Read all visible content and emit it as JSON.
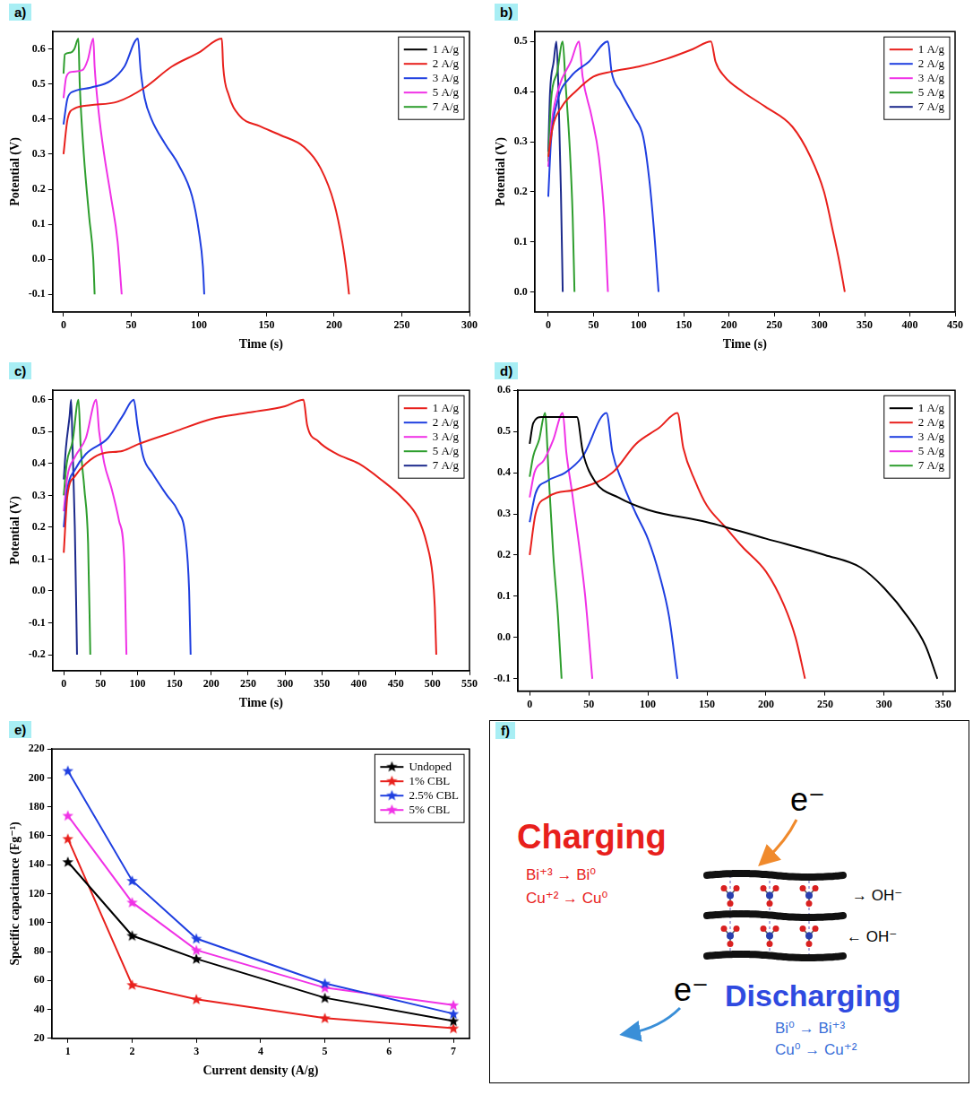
{
  "chart_data": [
    {
      "type": "line",
      "panel": "a)",
      "x_label": "Time (s)",
      "y_label": "Potential (V)",
      "xlim": [
        -8,
        300
      ],
      "xticks": [
        0,
        50,
        100,
        150,
        200,
        250,
        300
      ],
      "ylim": [
        -0.15,
        0.65
      ],
      "yticks": [
        -0.1,
        {
          "value": 0,
          "label": "0.0"
        },
        0.1,
        0.2,
        0.3,
        0.4,
        0.5,
        0.6
      ],
      "grid": false,
      "legend": "upper right",
      "series": [
        {
          "name": "1 A/g",
          "color": "#000000",
          "x": [],
          "values": []
        },
        {
          "name": "2 A/g",
          "color": "#e8201c",
          "x": [
            0,
            3,
            8,
            20,
            40,
            60,
            80,
            100,
            117,
            118,
            122,
            130,
            145,
            160,
            178,
            190,
            200,
            206,
            209,
            211
          ],
          "values": [
            0.3,
            0.4,
            0.43,
            0.44,
            0.45,
            0.49,
            0.55,
            0.59,
            0.63,
            0.55,
            0.47,
            0.41,
            0.38,
            0.355,
            0.32,
            0.26,
            0.16,
            0.05,
            -0.03,
            -0.1
          ]
        },
        {
          "name": "3 A/g",
          "color": "#1f3fe0",
          "x": [
            0,
            3,
            8,
            20,
            35,
            45,
            55,
            57,
            60,
            65,
            75,
            85,
            95,
            100,
            103,
            104
          ],
          "values": [
            0.385,
            0.46,
            0.48,
            0.49,
            0.51,
            0.55,
            0.63,
            0.54,
            0.46,
            0.4,
            0.33,
            0.27,
            0.18,
            0.08,
            -0.02,
            -0.1
          ]
        },
        {
          "name": "5 A/g",
          "color": "#f032e6",
          "x": [
            0,
            2,
            6,
            14,
            18,
            22,
            23,
            26,
            30,
            35,
            40,
            43
          ],
          "values": [
            0.46,
            0.52,
            0.535,
            0.54,
            0.57,
            0.63,
            0.55,
            0.42,
            0.3,
            0.18,
            0.05,
            -0.1
          ]
        },
        {
          "name": "7 A/g",
          "color": "#2e9e2e",
          "x": [
            0,
            1,
            5,
            8,
            11,
            12,
            15,
            19,
            22,
            23
          ],
          "values": [
            0.53,
            0.585,
            0.59,
            0.6,
            0.63,
            0.5,
            0.3,
            0.12,
            0.0,
            -0.1
          ]
        }
      ]
    },
    {
      "type": "line",
      "panel": "b)",
      "x_label": "Time (s)",
      "y_label": "Potential (V)",
      "xlim": [
        -15,
        450
      ],
      "xticks": [
        0,
        50,
        100,
        150,
        200,
        250,
        300,
        350,
        400,
        450
      ],
      "ylim": [
        -0.04,
        0.52
      ],
      "yticks": [
        {
          "value": 0,
          "label": "0.0"
        },
        0.1,
        0.2,
        0.3,
        0.4,
        0.5
      ],
      "grid": false,
      "legend": "upper right",
      "series": [
        {
          "name": "1 A/g",
          "color": "#e8201c",
          "x": [
            0,
            5,
            15,
            30,
            50,
            70,
            100,
            130,
            160,
            180,
            185,
            195,
            215,
            240,
            270,
            290,
            305,
            315,
            322,
            328
          ],
          "values": [
            0.27,
            0.33,
            0.37,
            0.4,
            0.43,
            0.44,
            0.45,
            0.465,
            0.485,
            0.5,
            0.46,
            0.43,
            0.4,
            0.37,
            0.33,
            0.27,
            0.2,
            0.12,
            0.06,
            0.0
          ]
        },
        {
          "name": "2 A/g",
          "color": "#1f3fe0",
          "x": [
            0,
            3,
            10,
            25,
            45,
            66,
            70,
            80,
            95,
            105,
            112,
            118,
            122
          ],
          "values": [
            0.19,
            0.3,
            0.38,
            0.43,
            0.46,
            0.5,
            0.44,
            0.4,
            0.35,
            0.31,
            0.22,
            0.1,
            0.0
          ]
        },
        {
          "name": "3 A/g",
          "color": "#f032e6",
          "x": [
            0,
            4,
            12,
            25,
            34,
            38,
            48,
            56,
            62,
            66
          ],
          "values": [
            0.25,
            0.34,
            0.41,
            0.46,
            0.5,
            0.43,
            0.35,
            0.27,
            0.15,
            0.0
          ]
        },
        {
          "name": "5 A/g",
          "color": "#2e9e2e",
          "x": [
            0,
            3,
            10,
            16,
            19,
            24,
            27,
            29
          ],
          "values": [
            0.26,
            0.38,
            0.44,
            0.5,
            0.42,
            0.28,
            0.15,
            0.0
          ]
        },
        {
          "name": "7 A/g",
          "color": "#1c2a8c",
          "x": [
            0,
            2,
            6,
            9,
            11,
            14,
            16
          ],
          "values": [
            0.28,
            0.4,
            0.46,
            0.5,
            0.42,
            0.2,
            0.0
          ]
        }
      ]
    },
    {
      "type": "line",
      "panel": "c)",
      "x_label": "Time (s)",
      "y_label": "Potential (V)",
      "xlim": [
        -15,
        550
      ],
      "xticks": [
        0,
        50,
        100,
        150,
        200,
        250,
        300,
        350,
        400,
        450,
        500,
        550
      ],
      "ylim": [
        -0.25,
        0.63
      ],
      "yticks": [
        -0.2,
        -0.1,
        {
          "value": 0,
          "label": "0.0"
        },
        0.1,
        0.2,
        0.3,
        0.4,
        0.5,
        0.6
      ],
      "grid": false,
      "legend": "upper right",
      "series": [
        {
          "name": "1 A/g",
          "color": "#e8201c",
          "x": [
            0,
            5,
            15,
            30,
            50,
            80,
            100,
            150,
            200,
            250,
            300,
            325,
            330,
            345,
            370,
            400,
            430,
            460,
            480,
            492,
            500,
            503,
            505
          ],
          "values": [
            0.12,
            0.3,
            0.36,
            0.4,
            0.43,
            0.44,
            0.46,
            0.5,
            0.54,
            0.56,
            0.58,
            0.6,
            0.52,
            0.47,
            0.43,
            0.4,
            0.35,
            0.29,
            0.23,
            0.15,
            0.05,
            -0.05,
            -0.2
          ]
        },
        {
          "name": "2 A/g",
          "color": "#1f3fe0",
          "x": [
            0,
            5,
            15,
            30,
            60,
            80,
            95,
            100,
            108,
            120,
            140,
            155,
            165,
            170,
            172
          ],
          "values": [
            0.2,
            0.32,
            0.38,
            0.43,
            0.48,
            0.55,
            0.6,
            0.52,
            0.42,
            0.37,
            0.3,
            0.25,
            0.17,
            0.0,
            -0.2
          ]
        },
        {
          "name": "3 A/g",
          "color": "#f032e6",
          "x": [
            0,
            5,
            15,
            30,
            44,
            48,
            55,
            65,
            75,
            82,
            85
          ],
          "values": [
            0.25,
            0.36,
            0.42,
            0.48,
            0.6,
            0.5,
            0.4,
            0.32,
            0.22,
            0.1,
            -0.2
          ]
        },
        {
          "name": "5 A/g",
          "color": "#2e9e2e",
          "x": [
            0,
            4,
            12,
            20,
            23,
            28,
            33,
            36
          ],
          "values": [
            0.3,
            0.4,
            0.47,
            0.6,
            0.45,
            0.32,
            0.15,
            -0.2
          ]
        },
        {
          "name": "7 A/g",
          "color": "#1c2a8c",
          "x": [
            0,
            3,
            8,
            10,
            12,
            15,
            18
          ],
          "values": [
            0.35,
            0.45,
            0.55,
            0.6,
            0.45,
            0.2,
            -0.2
          ]
        }
      ]
    },
    {
      "type": "line",
      "panel": "d)",
      "xlim": [
        -10,
        360
      ],
      "xticks": [
        0,
        50,
        100,
        150,
        200,
        250,
        300,
        350
      ],
      "ylim": [
        -0.13,
        0.6
      ],
      "yticks": [
        -0.1,
        {
          "value": 0,
          "label": "0.0"
        },
        0.1,
        0.2,
        0.3,
        0.4,
        0.5,
        0.6
      ],
      "grid": false,
      "legend": "upper right",
      "series": [
        {
          "name": "1 A/g",
          "color": "#000000",
          "x": [
            0,
            3,
            10,
            40,
            45,
            55,
            75,
            100,
            150,
            200,
            250,
            280,
            300,
            320,
            335,
            345
          ],
          "values": [
            0.47,
            0.52,
            0.535,
            0.535,
            0.45,
            0.38,
            0.34,
            0.31,
            0.28,
            0.24,
            0.2,
            0.17,
            0.12,
            0.05,
            -0.02,
            -0.1
          ]
        },
        {
          "name": "2 A/g",
          "color": "#e8201c",
          "x": [
            0,
            5,
            15,
            40,
            70,
            90,
            110,
            125,
            130,
            140,
            150,
            165,
            180,
            200,
            215,
            225,
            233
          ],
          "values": [
            0.2,
            0.3,
            0.34,
            0.36,
            0.4,
            0.47,
            0.51,
            0.545,
            0.46,
            0.38,
            0.32,
            0.27,
            0.22,
            0.16,
            0.08,
            0.0,
            -0.1
          ]
        },
        {
          "name": "3 A/g",
          "color": "#1f3fe0",
          "x": [
            0,
            5,
            15,
            30,
            45,
            65,
            70,
            78,
            90,
            100,
            110,
            118,
            125
          ],
          "values": [
            0.28,
            0.35,
            0.38,
            0.4,
            0.44,
            0.545,
            0.45,
            0.38,
            0.3,
            0.24,
            0.15,
            0.05,
            -0.1
          ]
        },
        {
          "name": "5 A/g",
          "color": "#f032e6",
          "x": [
            0,
            4,
            12,
            20,
            28,
            31,
            36,
            42,
            47,
            53
          ],
          "values": [
            0.34,
            0.4,
            0.43,
            0.48,
            0.545,
            0.45,
            0.35,
            0.22,
            0.1,
            -0.1
          ]
        },
        {
          "name": "7 A/g",
          "color": "#2e9e2e",
          "x": [
            0,
            3,
            8,
            13,
            16,
            20,
            24,
            27
          ],
          "values": [
            0.39,
            0.44,
            0.48,
            0.545,
            0.4,
            0.2,
            0.05,
            -0.1
          ]
        }
      ]
    },
    {
      "type": "line",
      "panel": "e)",
      "x_label": "Current density (A/g)",
      "y_label": "Specific capacitance (Fg⁻¹)",
      "xlim": [
        0.75,
        7.25
      ],
      "xticks": [
        1,
        2,
        3,
        4,
        5,
        6,
        7
      ],
      "ylim": [
        20,
        220
      ],
      "yticks": [
        20,
        40,
        60,
        80,
        100,
        120,
        140,
        160,
        180,
        200,
        220
      ],
      "grid": false,
      "legend": "upper right",
      "series": [
        {
          "name": "Undoped",
          "color": "#000000",
          "marker": "star",
          "x": [
            1,
            2,
            3,
            5,
            7
          ],
          "values": [
            142,
            91,
            75,
            48,
            32
          ]
        },
        {
          "name": "1% CBL",
          "color": "#e8201c",
          "marker": "star",
          "x": [
            1,
            2,
            3,
            5,
            7
          ],
          "values": [
            158,
            57,
            47,
            34,
            27
          ]
        },
        {
          "name": "2.5% CBL",
          "color": "#1f3fe0",
          "marker": "star",
          "x": [
            1,
            2,
            3,
            5,
            7
          ],
          "values": [
            205,
            129,
            89,
            58,
            37
          ]
        },
        {
          "name": "5% CBL",
          "color": "#f032e6",
          "marker": "star",
          "x": [
            1,
            2,
            3,
            5,
            7
          ],
          "values": [
            174,
            114,
            81,
            55,
            43
          ]
        }
      ]
    }
  ],
  "diagram": {
    "panel": "f)",
    "electron_in": "e⁻",
    "electron_out": "e⁻",
    "charging": {
      "title": "Charging",
      "reactions": [
        "Bi⁺³ → Bi⁰",
        "Cu⁺² → Cu⁰"
      ]
    },
    "discharging": {
      "title": "Discharging",
      "reactions": [
        "Bi⁰ → Bi⁺³",
        "Cu⁰ → Cu⁺²"
      ]
    },
    "ions": [
      "→ OH⁻",
      "← OH⁻"
    ]
  }
}
